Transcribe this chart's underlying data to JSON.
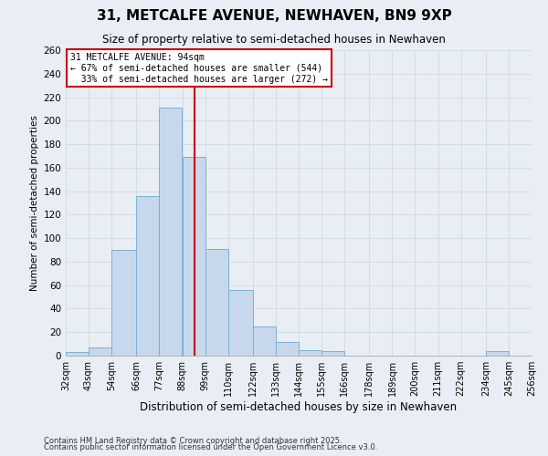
{
  "title": "31, METCALFE AVENUE, NEWHAVEN, BN9 9XP",
  "subtitle": "Size of property relative to semi-detached houses in Newhaven",
  "xlabel": "Distribution of semi-detached houses by size in Newhaven",
  "ylabel": "Number of semi-detached properties",
  "bin_labels": [
    "32sqm",
    "43sqm",
    "54sqm",
    "66sqm",
    "77sqm",
    "88sqm",
    "99sqm",
    "110sqm",
    "122sqm",
    "133sqm",
    "144sqm",
    "155sqm",
    "166sqm",
    "178sqm",
    "189sqm",
    "200sqm",
    "211sqm",
    "222sqm",
    "234sqm",
    "245sqm",
    "256sqm"
  ],
  "bar_values": [
    3,
    7,
    90,
    136,
    211,
    169,
    91,
    56,
    25,
    12,
    5,
    4,
    0,
    0,
    0,
    0,
    0,
    0,
    4,
    0,
    0
  ],
  "bar_color": "#c8d8ec",
  "bar_edge_color": "#7bafd4",
  "property_line_x": 94,
  "pct_smaller": 67,
  "count_smaller": 544,
  "pct_larger": 33,
  "count_larger": 272,
  "ylim": [
    0,
    260
  ],
  "yticks": [
    0,
    20,
    40,
    60,
    80,
    100,
    120,
    140,
    160,
    180,
    200,
    220,
    240,
    260
  ],
  "bin_edges": [
    32,
    43,
    54,
    66,
    77,
    88,
    99,
    110,
    122,
    133,
    144,
    155,
    166,
    178,
    189,
    200,
    211,
    222,
    234,
    245,
    256
  ],
  "footnote1": "Contains HM Land Registry data © Crown copyright and database right 2025.",
  "footnote2": "Contains public sector information licensed under the Open Government Licence v3.0.",
  "background_color": "#e8eef4",
  "grid_color": "#d0dce8",
  "annotation_box_color": "#ffffff",
  "annotation_box_edge": "#cc0000",
  "red_line_color": "#cc0000"
}
